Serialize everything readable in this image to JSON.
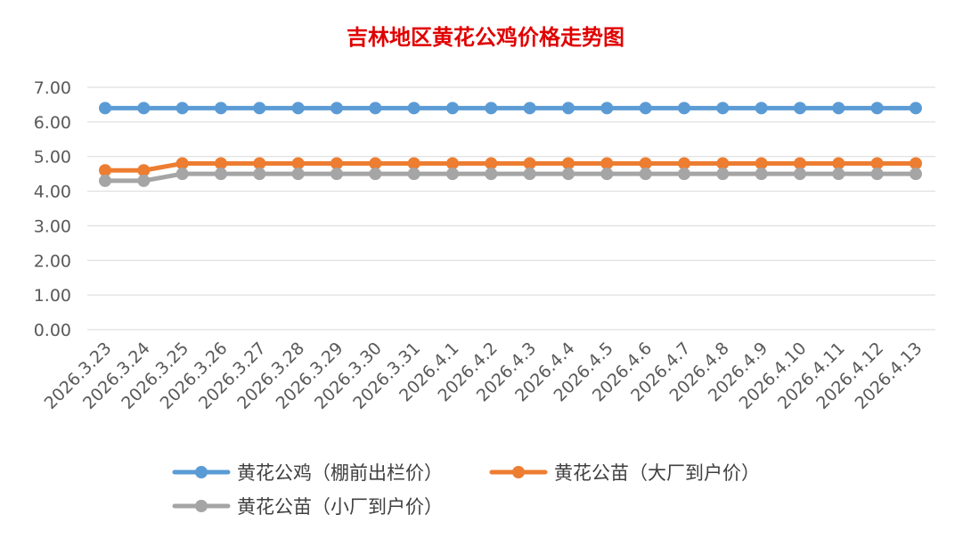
{
  "colors": {
    "background": "#ffffff",
    "gridline": "#d9d9d9",
    "axis_text": "#595959",
    "title": "#e00000"
  },
  "chart_data": {
    "type": "line",
    "title": "吉林地区黄花公鸡价格走势图",
    "xlabel": "",
    "ylabel": "",
    "ylim": [
      0,
      7
    ],
    "ytick_step": 1,
    "ytick_labels": [
      "0.00",
      "1.00",
      "2.00",
      "3.00",
      "4.00",
      "5.00",
      "6.00",
      "7.00"
    ],
    "grid": true,
    "legend_position": "bottom",
    "x": [
      "2026.3.23",
      "2026.3.24",
      "2026.3.25",
      "2026.3.26",
      "2026.3.27",
      "2026.3.28",
      "2026.3.29",
      "2026.3.30",
      "2026.3.31",
      "2026.4.1",
      "2026.4.2",
      "2026.4.3",
      "2026.4.4",
      "2026.4.5",
      "2026.4.6",
      "2026.4.7",
      "2026.4.8",
      "2026.4.9",
      "2026.4.10",
      "2026.4.11",
      "2026.4.12",
      "2026.4.13"
    ],
    "series": [
      {
        "name": "黄花公鸡（棚前出栏价）",
        "color": "#5b9bd5",
        "values": [
          6.4,
          6.4,
          6.4,
          6.4,
          6.4,
          6.4,
          6.4,
          6.4,
          6.4,
          6.4,
          6.4,
          6.4,
          6.4,
          6.4,
          6.4,
          6.4,
          6.4,
          6.4,
          6.4,
          6.4,
          6.4,
          6.4
        ]
      },
      {
        "name": "黄花公苗（大厂到户价）",
        "color": "#ed7d31",
        "values": [
          4.6,
          4.6,
          4.8,
          4.8,
          4.8,
          4.8,
          4.8,
          4.8,
          4.8,
          4.8,
          4.8,
          4.8,
          4.8,
          4.8,
          4.8,
          4.8,
          4.8,
          4.8,
          4.8,
          4.8,
          4.8,
          4.8
        ]
      },
      {
        "name": "黄花公苗（小厂到户价）",
        "color": "#a5a5a5",
        "values": [
          4.3,
          4.3,
          4.5,
          4.5,
          4.5,
          4.5,
          4.5,
          4.5,
          4.5,
          4.5,
          4.5,
          4.5,
          4.5,
          4.5,
          4.5,
          4.5,
          4.5,
          4.5,
          4.5,
          4.5,
          4.5,
          4.5
        ]
      }
    ]
  }
}
